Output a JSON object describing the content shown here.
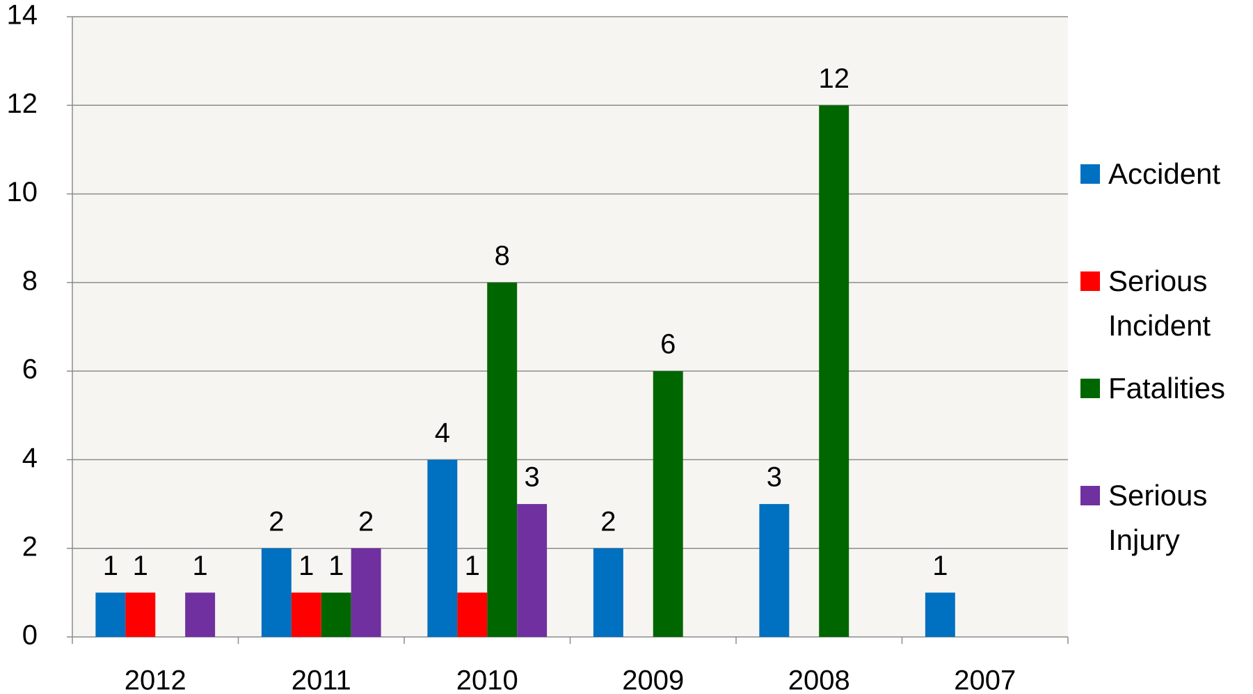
{
  "chart_data": {
    "type": "bar",
    "categories": [
      "2012",
      "2011",
      "2010",
      "2009",
      "2008",
      "2007"
    ],
    "series": [
      {
        "name": "Accident",
        "color": "#0070c0",
        "values": [
          1,
          2,
          4,
          2,
          3,
          1
        ]
      },
      {
        "name": "Serious Incident",
        "color": "#ff0000",
        "values": [
          1,
          1,
          1,
          null,
          null,
          null
        ]
      },
      {
        "name": "Fatalities",
        "color": "#006600",
        "values": [
          null,
          1,
          8,
          6,
          12,
          null
        ]
      },
      {
        "name": "Serious Injury",
        "color": "#7030a0",
        "values": [
          1,
          2,
          3,
          null,
          null,
          null
        ]
      }
    ],
    "ylim": [
      0,
      14
    ],
    "yticks": [
      0,
      2,
      4,
      6,
      8,
      10,
      12,
      14
    ],
    "grid": true,
    "legend": "right"
  }
}
